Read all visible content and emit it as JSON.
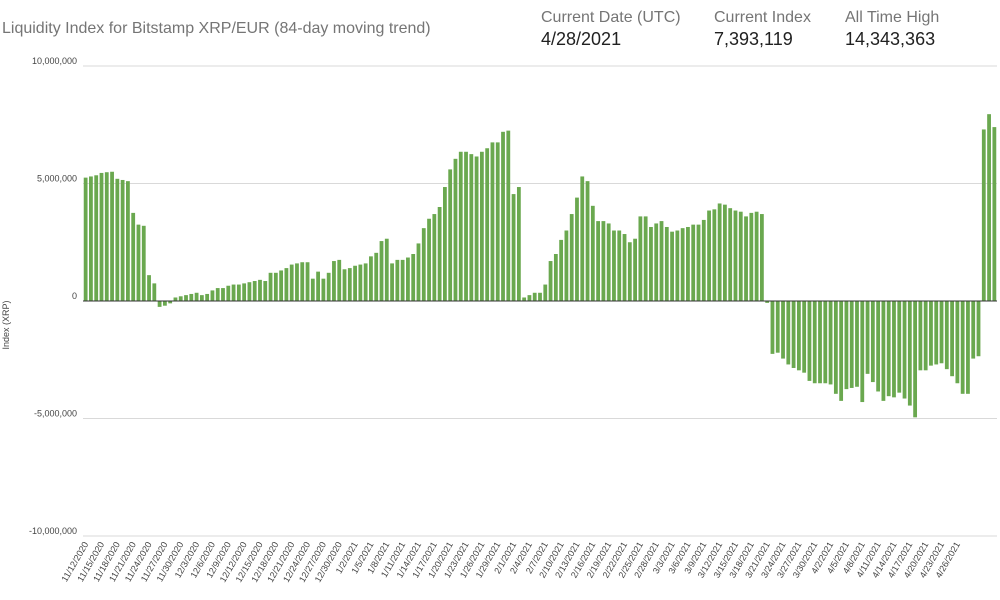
{
  "header": {
    "title": "Liquidity Index for Bitstamp XRP/EUR (84-day moving trend)",
    "stats": [
      {
        "label": "Current Date (UTC)",
        "value": "4/28/2021"
      },
      {
        "label": "Current Index",
        "value": "7,393,119"
      },
      {
        "label": "All Time High",
        "value": "14,343,363"
      }
    ]
  },
  "colors": {
    "bar": "#6aa84f",
    "grid": "#d9d9d9",
    "zero": "#333333"
  },
  "chart_data": {
    "type": "bar",
    "ylabel": "Index (XRP)",
    "ylim": [
      -10000000,
      10000000
    ],
    "yticks": [
      10000000,
      5000000,
      0,
      -5000000,
      -10000000
    ],
    "ytick_labels": [
      "10,000,000",
      "5,000,000",
      "0",
      "-5,000,000",
      "-10,000,000"
    ],
    "xtick_labels": [
      "11/12/2020",
      "11/15/2020",
      "11/18/2020",
      "11/21/2020",
      "11/24/2020",
      "11/27/2020",
      "11/30/2020",
      "12/3/2020",
      "12/6/2020",
      "12/9/2020",
      "12/12/2020",
      "12/15/2020",
      "12/18/2020",
      "12/21/2020",
      "12/24/2020",
      "12/27/2020",
      "12/30/2020",
      "1/2/2021",
      "1/5/2021",
      "1/8/2021",
      "1/11/2021",
      "1/14/2021",
      "1/17/2021",
      "1/20/2021",
      "1/23/2021",
      "1/26/2021",
      "1/29/2021",
      "2/1/2021",
      "2/4/2021",
      "2/7/2021",
      "2/10/2021",
      "2/13/2021",
      "2/16/2021",
      "2/19/2021",
      "2/22/2021",
      "2/25/2021",
      "2/28/2021",
      "3/3/2021",
      "3/6/2021",
      "3/9/2021",
      "3/12/2021",
      "3/15/2021",
      "3/18/2021",
      "3/21/2021",
      "3/24/2021",
      "3/27/2021",
      "3/30/2021",
      "4/2/2021",
      "4/5/2021",
      "4/8/2021",
      "4/11/2021",
      "4/14/2021",
      "4/17/2021",
      "4/20/2021",
      "4/23/2021",
      "4/26/2021"
    ],
    "values": [
      5250000,
      5300000,
      5350000,
      5450000,
      5480000,
      5500000,
      5200000,
      5150000,
      5100000,
      3750000,
      3250000,
      3200000,
      1100000,
      750000,
      -250000,
      -200000,
      -100000,
      150000,
      200000,
      250000,
      300000,
      350000,
      250000,
      300000,
      450000,
      550000,
      550000,
      650000,
      700000,
      700000,
      750000,
      800000,
      850000,
      900000,
      850000,
      1200000,
      1200000,
      1300000,
      1400000,
      1550000,
      1600000,
      1650000,
      1650000,
      950000,
      1250000,
      950000,
      1200000,
      1700000,
      1750000,
      1350000,
      1400000,
      1500000,
      1550000,
      1600000,
      1900000,
      2050000,
      2550000,
      2650000,
      1600000,
      1750000,
      1750000,
      1850000,
      2000000,
      2450000,
      3100000,
      3500000,
      3700000,
      4000000,
      4850000,
      5600000,
      6050000,
      6350000,
      6350000,
      6250000,
      6150000,
      6350000,
      6500000,
      6750000,
      6750000,
      7200000,
      7250000,
      4550000,
      4850000,
      150000,
      250000,
      350000,
      350000,
      700000,
      1700000,
      2000000,
      2600000,
      3000000,
      3700000,
      4400000,
      5300000,
      5100000,
      4050000,
      3400000,
      3400000,
      3300000,
      3000000,
      3000000,
      2850000,
      2500000,
      2650000,
      3600000,
      3600000,
      3150000,
      3300000,
      3400000,
      3150000,
      2950000,
      3000000,
      3100000,
      3150000,
      3250000,
      3250000,
      3450000,
      3850000,
      3900000,
      4150000,
      4100000,
      3950000,
      3850000,
      3800000,
      3600000,
      3750000,
      3800000,
      3700000,
      -80000,
      -2250000,
      -2200000,
      -2450000,
      -2700000,
      -2850000,
      -2950000,
      -3050000,
      -3400000,
      -3500000,
      -3500000,
      -3500000,
      -3550000,
      -3950000,
      -4250000,
      -3750000,
      -3700000,
      -3650000,
      -4300000,
      -3100000,
      -3450000,
      -3850000,
      -4250000,
      -4050000,
      -4100000,
      -3900000,
      -4150000,
      -4450000,
      -4950000,
      -2950000,
      -2950000,
      -2750000,
      -2700000,
      -2650000,
      -2900000,
      -3200000,
      -3500000,
      -3950000,
      -3950000,
      -2450000,
      -2350000,
      7300000,
      7950000,
      7400000
    ]
  }
}
